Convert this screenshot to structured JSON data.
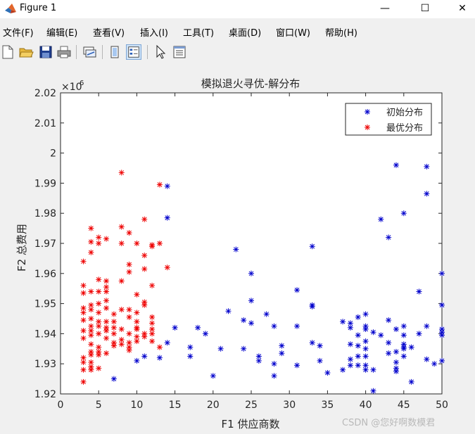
{
  "window": {
    "title": "Figure 1",
    "minimize_glyph": "—",
    "maximize_glyph": "☐",
    "close_glyph": "✕"
  },
  "menu": [
    {
      "label": "文件(F)"
    },
    {
      "label": "编辑(E)"
    },
    {
      "label": "查看(V)"
    },
    {
      "label": "插入(I)"
    },
    {
      "label": "工具(T)"
    },
    {
      "label": "桌面(D)"
    },
    {
      "label": "窗口(W)"
    },
    {
      "label": "帮助(H)"
    }
  ],
  "toolbar": {
    "icons": [
      "new-figure-icon",
      "open-file-icon",
      "save-icon",
      "print-icon",
      "link-plot-icon",
      "hide-plot-tools-icon",
      "show-plot-tools-icon",
      "edit-plot-icon",
      "open-property-inspector-icon"
    ]
  },
  "watermark": "CSDN @您好啊数模君",
  "colors": {
    "series_initial": "#0000cc",
    "series_optimal": "#ee0000"
  },
  "chart_data": {
    "type": "scatter",
    "title": "模拟退火寻优-解分布",
    "xlabel": "F1 供应商数",
    "ylabel": "F2 总费用",
    "y_exponent": "×10",
    "y_exponent_power": "6",
    "xlim": [
      0,
      50
    ],
    "ylim": [
      1.92,
      2.02
    ],
    "x_ticks": [
      0,
      5,
      10,
      15,
      20,
      25,
      30,
      35,
      40,
      45,
      50
    ],
    "y_ticks": [
      1.92,
      1.93,
      1.94,
      1.95,
      1.96,
      1.97,
      1.98,
      1.99,
      2,
      2.01,
      2.02
    ],
    "y_tick_labels": [
      "1.92",
      "1.93",
      "1.94",
      "1.95",
      "1.96",
      "1.97",
      "1.98",
      "1.99",
      "2",
      "2.01",
      "2.02"
    ],
    "grid": false,
    "legend_position": "top-right",
    "marker": "*",
    "series": [
      {
        "name": "初始分布",
        "color": "#0000cc",
        "points": [
          [
            14,
            1.989
          ],
          [
            14,
            1.9785
          ],
          [
            14,
            1.937
          ],
          [
            15,
            1.942
          ],
          [
            10,
            1.931
          ],
          [
            11,
            1.9325
          ],
          [
            13,
            1.932
          ],
          [
            7,
            1.925
          ],
          [
            17,
            1.9355
          ],
          [
            17,
            1.9325
          ],
          [
            18,
            1.942
          ],
          [
            19,
            1.94
          ],
          [
            20,
            1.926
          ],
          [
            21,
            1.935
          ],
          [
            22,
            1.9475
          ],
          [
            23,
            1.968
          ],
          [
            24,
            1.9445
          ],
          [
            24,
            1.935
          ],
          [
            25,
            1.96
          ],
          [
            25,
            1.951
          ],
          [
            25,
            1.9435
          ],
          [
            26,
            1.9325
          ],
          [
            26,
            1.931
          ],
          [
            27,
            1.9465
          ],
          [
            28,
            1.9425
          ],
          [
            28,
            1.93
          ],
          [
            28,
            1.926
          ],
          [
            29,
            1.936
          ],
          [
            29,
            1.9335
          ],
          [
            31,
            1.9545
          ],
          [
            31,
            1.9425
          ],
          [
            31,
            1.9295
          ],
          [
            33,
            1.969
          ],
          [
            33,
            1.9495
          ],
          [
            33,
            1.949
          ],
          [
            33,
            1.937
          ],
          [
            34,
            1.936
          ],
          [
            34,
            1.931
          ],
          [
            35,
            1.927
          ],
          [
            37,
            1.944
          ],
          [
            37,
            1.928
          ],
          [
            38,
            1.9435
          ],
          [
            38,
            1.942
          ],
          [
            38,
            1.9365
          ],
          [
            38,
            1.9315
          ],
          [
            38,
            1.9295
          ],
          [
            39,
            1.9455
          ],
          [
            39,
            1.9395
          ],
          [
            39,
            1.936
          ],
          [
            39,
            1.9325
          ],
          [
            39,
            1.9295
          ],
          [
            40,
            1.9465
          ],
          [
            40,
            1.9425
          ],
          [
            40,
            1.9415
          ],
          [
            40,
            1.9375
          ],
          [
            40,
            1.935
          ],
          [
            40,
            1.9325
          ],
          [
            40,
            1.9295
          ],
          [
            40,
            1.928
          ],
          [
            41,
            1.9405
          ],
          [
            41,
            1.928
          ],
          [
            41,
            1.921
          ],
          [
            42,
            1.978
          ],
          [
            42,
            1.9395
          ],
          [
            43,
            1.972
          ],
          [
            43,
            1.9445
          ],
          [
            43,
            1.937
          ],
          [
            43,
            1.9335
          ],
          [
            44,
            1.996
          ],
          [
            44,
            1.9415
          ],
          [
            44,
            1.934
          ],
          [
            44,
            1.9305
          ],
          [
            44,
            1.9285
          ],
          [
            44,
            1.9275
          ],
          [
            45,
            1.98
          ],
          [
            45,
            1.9425
          ],
          [
            45,
            1.9395
          ],
          [
            45,
            1.9365
          ],
          [
            45,
            1.9355
          ],
          [
            45,
            1.935
          ],
          [
            45,
            1.9325
          ],
          [
            46,
            1.9355
          ],
          [
            46,
            1.924
          ],
          [
            47,
            1.954
          ],
          [
            47,
            1.94
          ],
          [
            48,
            1.9955
          ],
          [
            48,
            1.9865
          ],
          [
            48,
            1.9425
          ],
          [
            48,
            1.9315
          ],
          [
            49,
            1.93
          ],
          [
            50,
            1.96
          ],
          [
            50,
            1.9495
          ],
          [
            50,
            1.9415
          ],
          [
            50,
            1.9405
          ],
          [
            50,
            1.9395
          ],
          [
            50,
            1.931
          ]
        ]
      },
      {
        "name": "最优分布",
        "color": "#ee0000",
        "points": [
          [
            8,
            1.9935
          ],
          [
            13,
            1.9895
          ],
          [
            11,
            1.978
          ],
          [
            8,
            1.9755
          ],
          [
            9,
            1.9735
          ],
          [
            4,
            1.975
          ],
          [
            5,
            1.972
          ],
          [
            6,
            1.9715
          ],
          [
            4,
            1.9705
          ],
          [
            5,
            1.97
          ],
          [
            8,
            1.97
          ],
          [
            10,
            1.97
          ],
          [
            12,
            1.9695
          ],
          [
            12,
            1.969
          ],
          [
            13,
            1.97
          ],
          [
            4,
            1.967
          ],
          [
            3,
            1.964
          ],
          [
            11,
            1.966
          ],
          [
            9,
            1.963
          ],
          [
            14,
            1.962
          ],
          [
            11,
            1.9615
          ],
          [
            9,
            1.9605
          ],
          [
            3,
            1.956
          ],
          [
            5,
            1.958
          ],
          [
            6,
            1.9575
          ],
          [
            6,
            1.9555
          ],
          [
            8,
            1.9575
          ],
          [
            12,
            1.956
          ],
          [
            4,
            1.954
          ],
          [
            5,
            1.954
          ],
          [
            6,
            1.954
          ],
          [
            3,
            1.9535
          ],
          [
            6,
            1.951
          ],
          [
            10,
            1.953
          ],
          [
            11,
            1.9505
          ],
          [
            11,
            1.9495
          ],
          [
            5,
            1.95
          ],
          [
            4,
            1.9495
          ],
          [
            3,
            1.9485
          ],
          [
            3,
            1.947
          ],
          [
            4,
            1.948
          ],
          [
            6,
            1.9485
          ],
          [
            8,
            1.948
          ],
          [
            5,
            1.947
          ],
          [
            7,
            1.9465
          ],
          [
            9,
            1.948
          ],
          [
            10,
            1.947
          ],
          [
            4,
            1.945
          ],
          [
            9,
            1.9455
          ],
          [
            12,
            1.9455
          ],
          [
            3,
            1.9445
          ],
          [
            5,
            1.944
          ],
          [
            6,
            1.944
          ],
          [
            7,
            1.944
          ],
          [
            10,
            1.944
          ],
          [
            12,
            1.9435
          ],
          [
            4,
            1.9425
          ],
          [
            5,
            1.9425
          ],
          [
            6,
            1.942
          ],
          [
            7,
            1.942
          ],
          [
            10,
            1.942
          ],
          [
            3,
            1.941
          ],
          [
            4,
            1.941
          ],
          [
            6,
            1.941
          ],
          [
            8,
            1.9415
          ],
          [
            9,
            1.94
          ],
          [
            10,
            1.9415
          ],
          [
            11,
            1.94
          ],
          [
            12,
            1.9415
          ],
          [
            4,
            1.9395
          ],
          [
            5,
            1.94
          ],
          [
            7,
            1.94
          ],
          [
            12,
            1.94
          ],
          [
            3,
            1.9385
          ],
          [
            6,
            1.9385
          ],
          [
            8,
            1.938
          ],
          [
            10,
            1.939
          ],
          [
            11,
            1.939
          ],
          [
            4,
            1.9365
          ],
          [
            7,
            1.937
          ],
          [
            9,
            1.937
          ],
          [
            10,
            1.9375
          ],
          [
            12,
            1.9375
          ],
          [
            5,
            1.9355
          ],
          [
            7,
            1.936
          ],
          [
            8,
            1.9365
          ],
          [
            9,
            1.9355
          ],
          [
            13,
            1.9355
          ],
          [
            4,
            1.934
          ],
          [
            5,
            1.934
          ],
          [
            6,
            1.9335
          ],
          [
            9,
            1.9345
          ],
          [
            3,
            1.932
          ],
          [
            4,
            1.933
          ],
          [
            5,
            1.933
          ],
          [
            3,
            1.9305
          ],
          [
            4,
            1.9305
          ],
          [
            4,
            1.929
          ],
          [
            5,
            1.9285
          ],
          [
            3,
            1.928
          ],
          [
            4,
            1.928
          ],
          [
            3,
            1.924
          ]
        ]
      }
    ]
  }
}
